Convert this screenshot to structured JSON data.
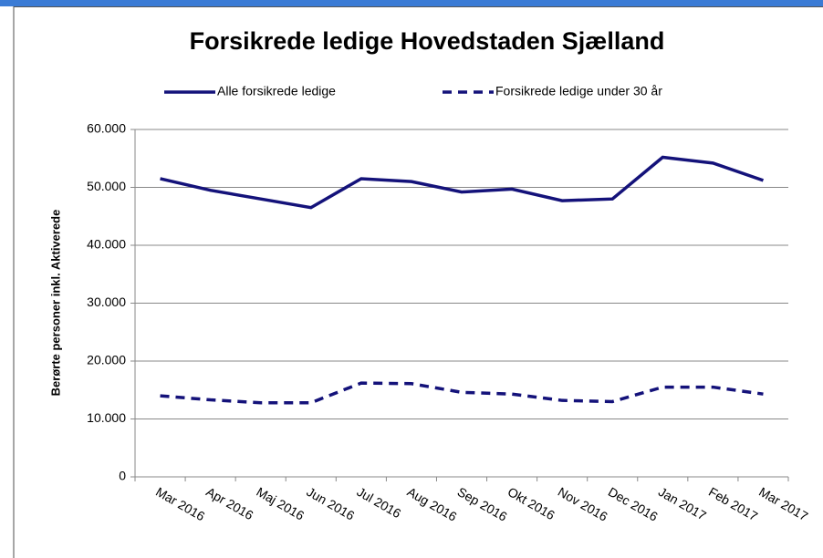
{
  "chart_data": {
    "type": "line",
    "title": "Forsikrede ledige Hovedstaden Sjælland",
    "y_label": "Berørte personer inkl. Aktiverede",
    "categories": [
      "Mar 2016",
      "Apr 2016",
      "Maj 2016",
      "Jun 2016",
      "Jul 2016",
      "Aug 2016",
      "Sep 2016",
      "Okt 2016",
      "Nov 2016",
      "Dec 2016",
      "Jan 2017",
      "Feb 2017",
      "Mar 2017"
    ],
    "series": [
      {
        "name": "Alle forsikrede ledige",
        "color": "#14127a",
        "linestyle": "solid",
        "values": [
          51500,
          49500,
          48000,
          46500,
          51500,
          51000,
          49200,
          49700,
          47700,
          48000,
          55200,
          54200,
          51200
        ]
      },
      {
        "name": "Forsikrede ledige under 30 år",
        "color": "#14127a",
        "linestyle": "dashed",
        "values": [
          14000,
          13300,
          12800,
          12800,
          16200,
          16100,
          14600,
          14300,
          13200,
          13000,
          15500,
          15500,
          14300
        ]
      }
    ],
    "ylim": [
      0,
      60000
    ],
    "yticks": [
      0,
      {
        "value": 10000,
        "label": "10.000"
      },
      {
        "value": 20000,
        "label": "20.000"
      },
      {
        "value": 30000,
        "label": "30.000"
      },
      {
        "value": 40000,
        "label": "40.000"
      },
      {
        "value": 50000,
        "label": "50.000"
      },
      {
        "value": 60000,
        "label": "60.000"
      }
    ],
    "grid": true,
    "legend": "top"
  }
}
